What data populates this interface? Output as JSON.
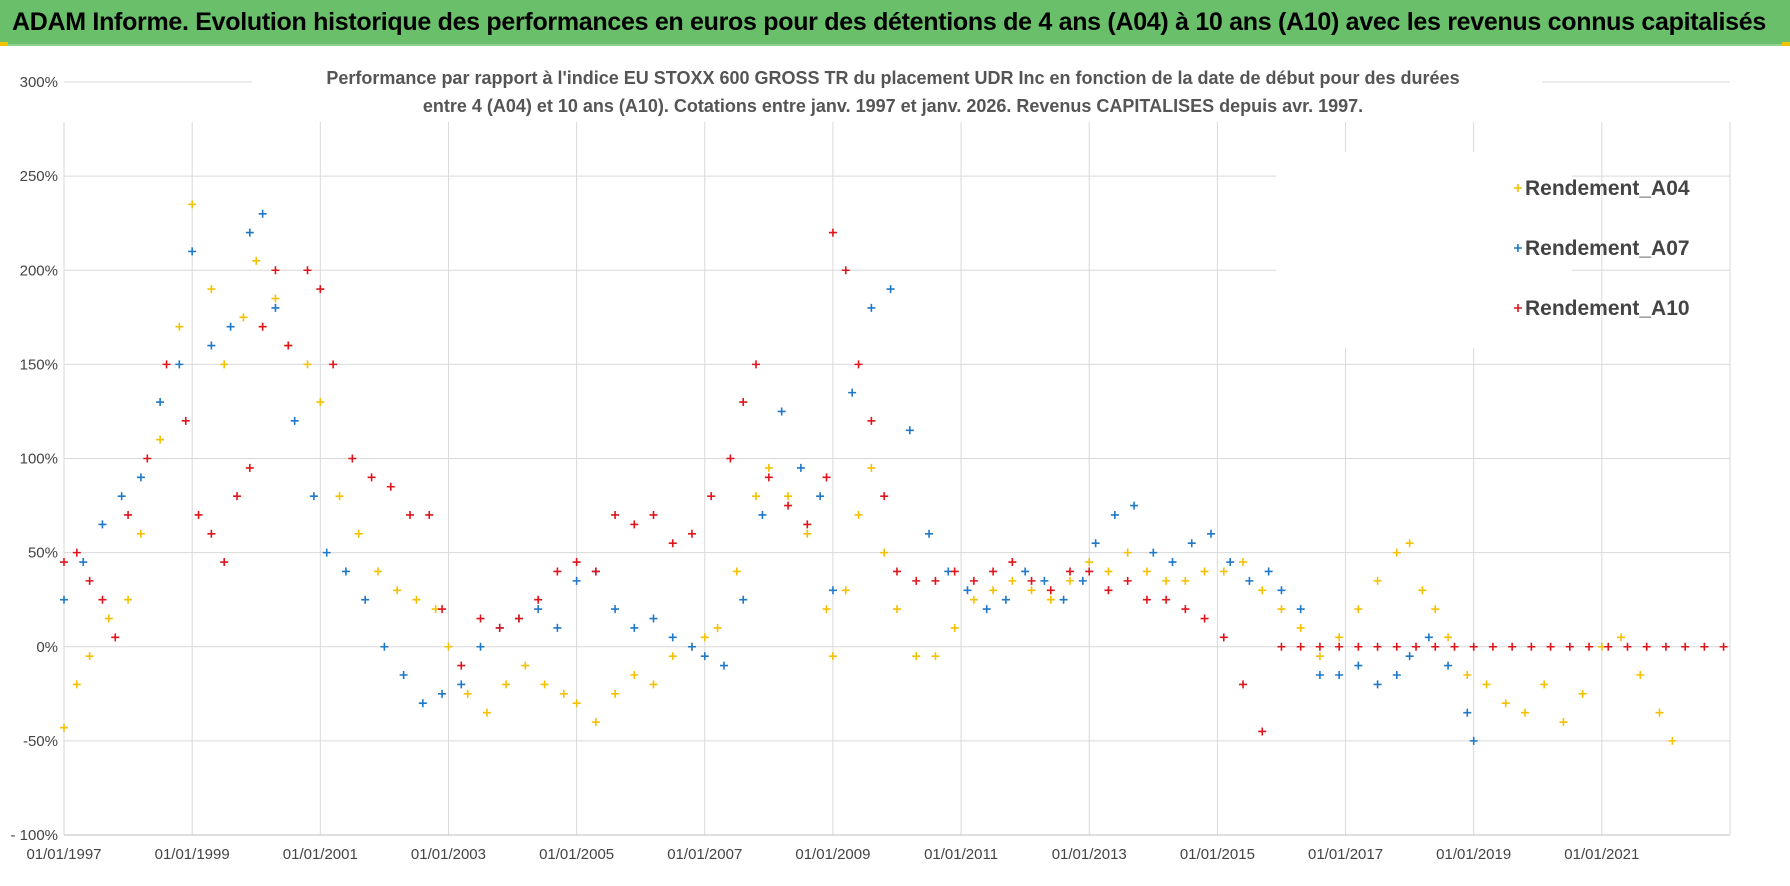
{
  "header": {
    "title": "ADAM Informe. Evolution historique des performances en euros pour des détentions de 4 ans (A04) à 10 ans (A10) avec les revenus connus capitalisés"
  },
  "colors": {
    "header_bg": "#6abf6a",
    "A04": "#f5c000",
    "A07": "#1f78c8",
    "A10": "#e0151b",
    "grid": "#d9d9d9"
  },
  "chart_data": {
    "type": "scatter",
    "title_lines": [
      "Performance par rapport à l'indice EU STOXX 600 GROSS TR  du placement UDR Inc en fonction de la date de début pour des durées",
      "entre 4 (A04) et 10 ans (A10).  Cotations entre janv. 1997 et janv. 2026. Revenus CAPITALISES depuis avr. 1997."
    ],
    "xlabel": "",
    "ylabel": "",
    "xlim": [
      1997.0,
      2023.0
    ],
    "ylim": [
      -100,
      300
    ],
    "y_ticks": [
      -100,
      -50,
      0,
      50,
      100,
      150,
      200,
      250,
      300
    ],
    "y_tick_labels": [
      "- 100%",
      "-50%",
      "0%",
      "50%",
      "100%",
      "150%",
      "200%",
      "250%",
      "300%"
    ],
    "x_ticks": [
      1997,
      1999,
      2001,
      2003,
      2005,
      2007,
      2009,
      2011,
      2013,
      2015,
      2017,
      2019,
      2021
    ],
    "x_tick_labels": [
      "01/01/1997",
      "01/01/1999",
      "01/01/2001",
      "01/01/2003",
      "01/01/2005",
      "01/01/2007",
      "01/01/2009",
      "01/01/2011",
      "01/01/2013",
      "01/01/2015",
      "01/01/2017",
      "01/01/2019",
      "01/01/2021"
    ],
    "grid": true,
    "legend_position": "top-right",
    "marker": "+",
    "series": [
      {
        "name": "Rendement_A04",
        "x": [
          1997.0,
          1997.2,
          1997.4,
          1997.7,
          1998.0,
          1998.2,
          1998.5,
          1998.8,
          1999.0,
          1999.3,
          1999.5,
          1999.8,
          2000.0,
          2000.3,
          2000.5,
          2000.8,
          2001.0,
          2001.3,
          2001.6,
          2001.9,
          2002.2,
          2002.5,
          2002.8,
          2003.0,
          2003.3,
          2003.6,
          2003.9,
          2004.2,
          2004.5,
          2004.8,
          2005.0,
          2005.3,
          2005.6,
          2005.9,
          2006.2,
          2006.5,
          2006.8,
          2007.0,
          2007.2,
          2007.5,
          2007.8,
          2008.0,
          2008.3,
          2008.6,
          2008.9,
          2009.0,
          2009.2,
          2009.4,
          2009.6,
          2009.8,
          2010.0,
          2010.3,
          2010.6,
          2010.9,
          2011.2,
          2011.5,
          2011.8,
          2012.1,
          2012.4,
          2012.7,
          2013.0,
          2013.3,
          2013.6,
          2013.9,
          2014.2,
          2014.5,
          2014.8,
          2015.1,
          2015.4,
          2015.7,
          2016.0,
          2016.3,
          2016.6,
          2016.9,
          2017.2,
          2017.5,
          2017.8,
          2018.0,
          2018.2,
          2018.4,
          2018.6,
          2018.9,
          2019.2,
          2019.5,
          2019.8,
          2020.1,
          2020.4,
          2020.7,
          2021.0,
          2021.3,
          2021.6,
          2021.9,
          2022.1
        ],
        "values": [
          -43,
          -20,
          -5,
          15,
          25,
          60,
          110,
          170,
          235,
          190,
          150,
          175,
          205,
          185,
          160,
          150,
          130,
          80,
          60,
          40,
          30,
          25,
          20,
          0,
          -25,
          -35,
          -20,
          -10,
          -20,
          -25,
          -30,
          -40,
          -25,
          -15,
          -20,
          -5,
          0,
          5,
          10,
          40,
          80,
          95,
          80,
          60,
          20,
          -5,
          30,
          70,
          95,
          50,
          20,
          -5,
          -5,
          10,
          25,
          30,
          35,
          30,
          25,
          35,
          45,
          40,
          50,
          40,
          35,
          35,
          40,
          40,
          45,
          30,
          20,
          10,
          -5,
          5,
          20,
          35,
          50,
          55,
          30,
          20,
          5,
          -15,
          -20,
          -30,
          -35,
          -20,
          -40,
          -25,
          0,
          5,
          -15,
          -35,
          -50
        ]
      },
      {
        "name": "Rendement_A07",
        "x": [
          1997.0,
          1997.3,
          1997.6,
          1997.9,
          1998.2,
          1998.5,
          1998.8,
          1999.0,
          1999.3,
          1999.6,
          1999.9,
          2000.1,
          2000.3,
          2000.6,
          2000.9,
          2001.1,
          2001.4,
          2001.7,
          2002.0,
          2002.3,
          2002.6,
          2002.9,
          2003.2,
          2003.5,
          2003.8,
          2004.1,
          2004.4,
          2004.7,
          2005.0,
          2005.3,
          2005.6,
          2005.9,
          2006.2,
          2006.5,
          2006.8,
          2007.0,
          2007.3,
          2007.6,
          2007.9,
          2008.2,
          2008.5,
          2008.8,
          2009.0,
          2009.3,
          2009.6,
          2009.9,
          2010.2,
          2010.5,
          2010.8,
          2011.1,
          2011.4,
          2011.7,
          2012.0,
          2012.3,
          2012.6,
          2012.9,
          2013.1,
          2013.4,
          2013.7,
          2014.0,
          2014.3,
          2014.6,
          2014.9,
          2015.2,
          2015.5,
          2015.8,
          2016.0,
          2016.3,
          2016.6,
          2016.9,
          2017.2,
          2017.5,
          2017.8,
          2018.0,
          2018.3,
          2018.6,
          2018.9,
          2019.0
        ],
        "values": [
          25,
          45,
          65,
          80,
          90,
          130,
          150,
          210,
          160,
          170,
          220,
          230,
          180,
          120,
          80,
          50,
          40,
          25,
          0,
          -15,
          -30,
          -25,
          -20,
          0,
          10,
          15,
          20,
          10,
          35,
          40,
          20,
          10,
          15,
          5,
          0,
          -5,
          -10,
          25,
          70,
          125,
          95,
          80,
          30,
          135,
          180,
          190,
          115,
          60,
          40,
          30,
          20,
          25,
          40,
          35,
          25,
          35,
          55,
          70,
          75,
          50,
          45,
          55,
          60,
          45,
          35,
          40,
          30,
          20,
          -15,
          -15,
          -10,
          -20,
          -15,
          -5,
          5,
          -10,
          -35,
          -50
        ]
      },
      {
        "name": "Rendement_A10",
        "x": [
          1997.0,
          1997.2,
          1997.4,
          1997.6,
          1997.8,
          1998.0,
          1998.3,
          1998.6,
          1998.9,
          1999.1,
          1999.3,
          1999.5,
          1999.7,
          1999.9,
          2000.1,
          2000.3,
          2000.5,
          2000.8,
          2001.0,
          2001.2,
          2001.5,
          2001.8,
          2002.1,
          2002.4,
          2002.7,
          2002.9,
          2003.2,
          2003.5,
          2003.8,
          2004.1,
          2004.4,
          2004.7,
          2005.0,
          2005.3,
          2005.6,
          2005.9,
          2006.2,
          2006.5,
          2006.8,
          2007.1,
          2007.4,
          2007.6,
          2007.8,
          2008.0,
          2008.3,
          2008.6,
          2008.9,
          2009.0,
          2009.2,
          2009.4,
          2009.6,
          2009.8,
          2010.0,
          2010.3,
          2010.6,
          2010.9,
          2011.2,
          2011.5,
          2011.8,
          2012.1,
          2012.4,
          2012.7,
          2013.0,
          2013.3,
          2013.6,
          2013.9,
          2014.2,
          2014.5,
          2014.8,
          2015.1,
          2015.4,
          2015.7,
          2016.0,
          2016.3,
          2016.6,
          2016.9,
          2017.2,
          2017.5,
          2017.8,
          2018.1,
          2018.4,
          2018.7,
          2019.0,
          2019.3,
          2019.6,
          2019.9,
          2020.2,
          2020.5,
          2020.8,
          2021.1,
          2021.4,
          2021.7,
          2022.0,
          2022.3,
          2022.6,
          2022.9
        ],
        "values": [
          45,
          50,
          35,
          25,
          5,
          70,
          100,
          150,
          120,
          70,
          60,
          45,
          80,
          95,
          170,
          200,
          160,
          200,
          190,
          150,
          100,
          90,
          85,
          70,
          70,
          20,
          -10,
          15,
          10,
          15,
          25,
          40,
          45,
          40,
          70,
          65,
          70,
          55,
          60,
          80,
          100,
          130,
          150,
          90,
          75,
          65,
          90,
          220,
          200,
          150,
          120,
          80,
          40,
          35,
          35,
          40,
          35,
          40,
          45,
          35,
          30,
          40,
          40,
          30,
          35,
          25,
          25,
          20,
          15,
          5,
          -20,
          -45,
          0,
          0,
          0,
          0,
          0,
          0,
          0,
          0,
          0,
          0,
          0,
          0,
          0,
          0,
          0,
          0,
          0,
          0,
          0,
          0,
          0,
          0,
          0,
          0
        ]
      }
    ]
  }
}
